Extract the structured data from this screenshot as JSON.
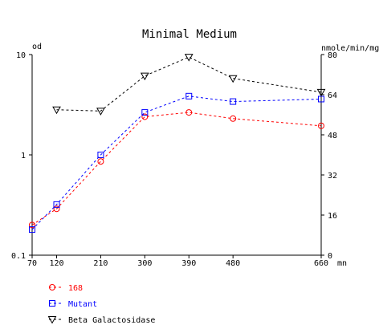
{
  "chart_data": {
    "type": "line",
    "title": "Minimal Medium",
    "x_unit": "mn",
    "x_ticks": [
      70,
      120,
      210,
      300,
      390,
      480,
      660
    ],
    "x_range": [
      70,
      660
    ],
    "y_left": {
      "label": "od",
      "scale": "log",
      "range": [
        0.1,
        10
      ],
      "ticks": [
        "0.1",
        "1",
        "10"
      ]
    },
    "y_right": {
      "label": "nmole/min/mg",
      "scale": "linear",
      "range": [
        0,
        80
      ],
      "ticks": [
        "0",
        "16",
        "32",
        "48",
        "64",
        "80"
      ]
    },
    "grid": false,
    "legend_position": "bottom-left",
    "series": [
      {
        "name": "168",
        "axis": "left",
        "color": "#ff0000",
        "marker": "circle",
        "x": [
          70,
          120,
          210,
          300,
          390,
          480,
          660
        ],
        "y": [
          0.2,
          0.29,
          0.86,
          2.4,
          2.65,
          2.3,
          1.95
        ]
      },
      {
        "name": "Mutant",
        "axis": "left",
        "color": "#0000ff",
        "marker": "square",
        "x": [
          70,
          120,
          210,
          300,
          390,
          480,
          660
        ],
        "y": [
          0.18,
          0.32,
          1.0,
          2.65,
          3.85,
          3.4,
          3.6
        ]
      },
      {
        "name": "Beta Galactosidase",
        "axis": "right",
        "color": "#000000",
        "marker": "triangle-down",
        "x": [
          120,
          210,
          300,
          390,
          480,
          660
        ],
        "y": [
          58,
          57.5,
          71.5,
          79,
          70.5,
          65
        ]
      }
    ]
  }
}
